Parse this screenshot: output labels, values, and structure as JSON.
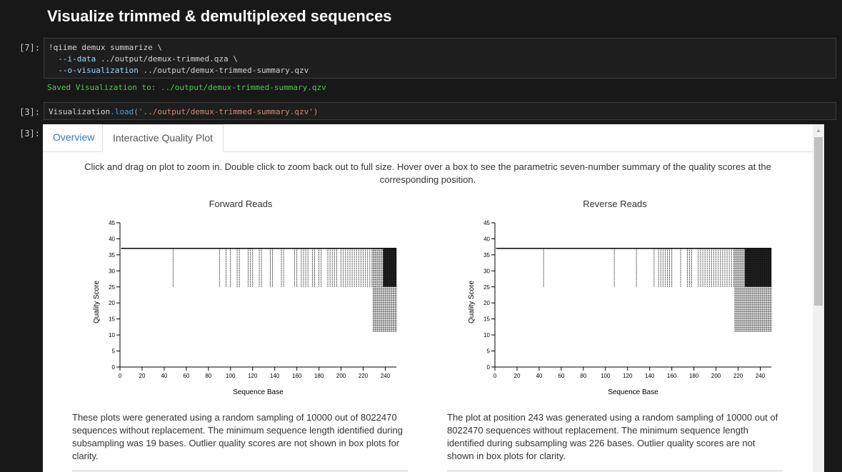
{
  "heading": "Visualize trimmed & demultiplexed sequences",
  "cells": {
    "c1_prompt": "[7]:",
    "c1_line1": "!qiime demux summarize \\",
    "c1_line2_flag": "  --i-data",
    "c1_line2_path": " ../output/demux-trimmed.qza \\",
    "c1_line3_flag": "  --o-visualization",
    "c1_line3_path": " ../output/demux-trimmed-summary.qzv",
    "c1_output": "Saved Visualization to: ../output/demux-trimmed-summary.qzv",
    "c2_prompt": "[3]:",
    "c2_obj": "Visualization",
    "c2_method": ".load",
    "c2_arg": "('../output/demux-trimmed-summary.qzv')",
    "c3_prompt": "[3]:"
  },
  "tabs": [
    "Overview",
    "Interactive Quality Plot"
  ],
  "intro_text": "Click and drag on plot to zoom in. Double click to zoom back out to full size. Hover over a box to see the parametric seven-number summary of the quality scores at the corresponding position.",
  "chart_data": [
    {
      "type": "box",
      "title": "Forward Reads",
      "xlabel": "Sequence Base",
      "ylabel": "Quality Score",
      "xlim": [
        0,
        250
      ],
      "ylim": [
        0,
        45
      ],
      "xticks": [
        0,
        20,
        40,
        60,
        80,
        100,
        120,
        140,
        160,
        180,
        200,
        220,
        240
      ],
      "yticks": [
        0,
        5,
        10,
        15,
        20,
        25,
        30,
        35,
        40,
        45
      ],
      "median": 37,
      "box_top": 37,
      "whisker_low_positions": [
        48,
        90,
        96,
        100,
        106,
        108,
        116,
        118,
        120,
        126,
        128,
        136,
        138,
        146,
        148,
        158,
        160,
        164,
        166,
        168,
        170,
        174,
        176,
        180,
        182,
        188,
        190,
        192,
        194,
        196,
        200,
        202,
        204,
        206,
        208,
        210,
        212,
        214,
        216,
        218,
        220,
        222,
        224,
        226,
        228
      ],
      "whisker_low": 25,
      "tail_start": 229,
      "tail_end": 250,
      "tail_whisker_low": 11
    },
    {
      "type": "box",
      "title": "Reverse Reads",
      "xlabel": "Sequence Base",
      "ylabel": "Quality Score",
      "xlim": [
        0,
        250
      ],
      "ylim": [
        0,
        45
      ],
      "xticks": [
        0,
        20,
        40,
        60,
        80,
        100,
        120,
        140,
        160,
        180,
        200,
        220,
        240
      ],
      "yticks": [
        0,
        5,
        10,
        15,
        20,
        25,
        30,
        35,
        40,
        45
      ],
      "median": 37,
      "box_top": 37,
      "whisker_low_positions": [
        44,
        108,
        128,
        144,
        148,
        150,
        152,
        154,
        156,
        158,
        160,
        168,
        174,
        176,
        178,
        184,
        186,
        188,
        190,
        192,
        194,
        196,
        198,
        200,
        202,
        204,
        206,
        208,
        210,
        212,
        214,
        216
      ],
      "whisker_low": 25,
      "tail_start": 217,
      "tail_end": 250,
      "tail_whisker_low": 11
    }
  ],
  "desc_forward": "These plots were generated using a random sampling of 10000 out of 8022470 sequences without replacement. The minimum sequence length identified during subsampling was 19 bases. Outlier quality scores are not shown in box plots for clarity.",
  "desc_reverse": "The plot at position 243 was generated using a random sampling of 10000 out of 8022470 sequences without replacement. The minimum sequence length identified during subsampling was 226 bases. Outlier quality scores are not shown in box plots for clarity."
}
